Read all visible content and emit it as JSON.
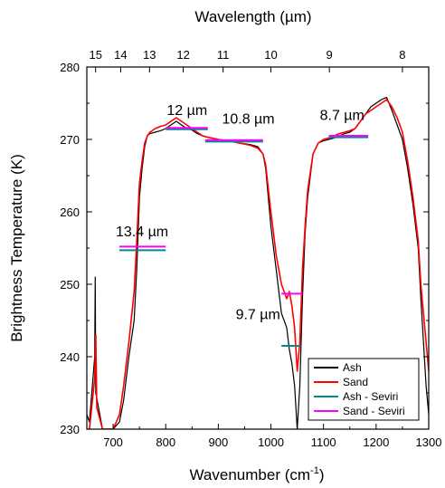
{
  "chart_data": {
    "type": "line",
    "xlabel": "Wavenumber (cm",
    "xlabel_sup": "-1",
    "xlabel_close": ")",
    "ylabel": "Brightness Temperature (K)",
    "top_xlabel": "Wavelength (µm)",
    "xlim": [
      650,
      1300
    ],
    "ylim": [
      230,
      280
    ],
    "xticks": [
      700,
      800,
      900,
      1000,
      1100,
      1200,
      1300
    ],
    "xtick_labels": [
      "700",
      "800",
      "900",
      "1000",
      "1100",
      "1200",
      "1300"
    ],
    "yticks": [
      230,
      240,
      250,
      260,
      270,
      280
    ],
    "ytick_labels": [
      "230",
      "240",
      "250",
      "260",
      "270",
      "280"
    ],
    "top_ticks": [
      {
        "label": "15",
        "wavenumber": 666.7
      },
      {
        "label": "14",
        "wavenumber": 714.3
      },
      {
        "label": "13",
        "wavenumber": 769.2
      },
      {
        "label": "12",
        "wavenumber": 833.3
      },
      {
        "label": "11",
        "wavenumber": 909.1
      },
      {
        "label": "10",
        "wavenumber": 1000
      },
      {
        "label": "9",
        "wavenumber": 1111.1
      },
      {
        "label": "8",
        "wavenumber": 1250
      }
    ],
    "series": [
      {
        "name": "Ash",
        "color": "#000000",
        "x": [
          650,
          655,
          665,
          666,
          667,
          680,
          700,
          712,
          720,
          730,
          740,
          745,
          750,
          755,
          760,
          765,
          770,
          780,
          790,
          800,
          810,
          820,
          830,
          840,
          850,
          860,
          870,
          880,
          900,
          920,
          940,
          960,
          975,
          985,
          990,
          1000,
          1010,
          1020,
          1030,
          1035,
          1040,
          1045,
          1050,
          1055,
          1060,
          1065,
          1070,
          1080,
          1090,
          1100,
          1110,
          1120,
          1130,
          1140,
          1150,
          1160,
          1170,
          1180,
          1190,
          1200,
          1210,
          1220,
          1230,
          1240,
          1250,
          1260,
          1270,
          1280,
          1285,
          1290,
          1295,
          1300
        ],
        "y": [
          232,
          231,
          240,
          251,
          235,
          230,
          230,
          231,
          234,
          240,
          245,
          252,
          262,
          266,
          269,
          270.5,
          270.8,
          271,
          271.2,
          271.5,
          272,
          272.5,
          272,
          271.5,
          271.3,
          270.8,
          270.5,
          270.3,
          270,
          269.8,
          269.5,
          269.3,
          269,
          268,
          266,
          258,
          252,
          246,
          244,
          241,
          239,
          236,
          230,
          236,
          248,
          257,
          262,
          268,
          269.5,
          269.8,
          270,
          270.2,
          270.5,
          270.8,
          271,
          271.5,
          272.5,
          273.5,
          274.5,
          275,
          275.5,
          275.8,
          274,
          272,
          270,
          266,
          261,
          255,
          248,
          242,
          236,
          232
        ]
      },
      {
        "name": "Sand",
        "color": "#ff0000",
        "x": [
          650,
          655,
          665,
          667,
          669,
          680,
          700,
          712,
          720,
          730,
          740,
          745,
          750,
          755,
          760,
          765,
          770,
          780,
          790,
          800,
          810,
          820,
          830,
          840,
          850,
          860,
          870,
          880,
          900,
          920,
          940,
          960,
          975,
          985,
          990,
          1000,
          1010,
          1020,
          1030,
          1035,
          1040,
          1045,
          1050,
          1055,
          1060,
          1065,
          1070,
          1080,
          1090,
          1100,
          1110,
          1120,
          1130,
          1140,
          1150,
          1160,
          1170,
          1180,
          1190,
          1200,
          1210,
          1220,
          1230,
          1240,
          1250,
          1260,
          1270,
          1280,
          1285,
          1290,
          1295,
          1300
        ],
        "y": [
          230,
          230,
          237,
          243,
          233,
          230,
          230,
          232,
          236,
          242,
          249,
          256,
          264,
          267,
          269.5,
          270.5,
          271,
          271.5,
          271.8,
          272,
          272.5,
          273,
          272.5,
          272,
          271.5,
          271,
          270.5,
          270.3,
          270,
          269.8,
          269.5,
          269.2,
          268.8,
          268,
          266.5,
          260,
          254,
          250,
          248,
          249,
          247,
          244,
          238,
          242,
          252,
          258,
          263,
          268,
          269.5,
          270,
          270.2,
          270.5,
          270.8,
          271,
          271.2,
          271.5,
          272.5,
          273.5,
          274,
          274.5,
          275,
          275.5,
          274.5,
          273,
          271,
          267,
          262,
          256,
          250,
          246,
          242,
          238
        ]
      },
      {
        "name": "Ash - Seviri",
        "color": "#008b8b",
        "segments": [
          {
            "x": [
              712,
              800
            ],
            "y": 254.7
          },
          {
            "x": [
              800,
              880
            ],
            "y": 271.4
          },
          {
            "x": [
              875,
              985
            ],
            "y": 269.7
          },
          {
            "x": [
              1020,
              1055
            ],
            "y": 241.5
          },
          {
            "x": [
              1110,
              1185
            ],
            "y": 270.3
          }
        ]
      },
      {
        "name": "Sand - Seviri",
        "color": "#ff00ff",
        "segments": [
          {
            "x": [
              712,
              800
            ],
            "y": 255.2
          },
          {
            "x": [
              800,
              880
            ],
            "y": 271.6
          },
          {
            "x": [
              875,
              985
            ],
            "y": 269.9
          },
          {
            "x": [
              1020,
              1060
            ],
            "y": 248.7
          },
          {
            "x": [
              1110,
              1185
            ],
            "y": 270.5
          }
        ]
      }
    ],
    "annotations": [
      {
        "text": "12 µm",
        "x": 802,
        "y": 273.4
      },
      {
        "text": "10.8 µm",
        "x": 907,
        "y": 272.2
      },
      {
        "text": "8.7 µm",
        "x": 1093,
        "y": 272.7
      },
      {
        "text": "13.4 µm",
        "x": 705,
        "y": 256.6
      },
      {
        "text": "9.7 µm",
        "x": 933,
        "y": 245.2
      }
    ],
    "legend": {
      "position": "bottom-right",
      "entries": [
        "Ash",
        "Sand",
        "Ash - Seviri",
        "Sand - Seviri"
      ]
    },
    "grid": false
  }
}
